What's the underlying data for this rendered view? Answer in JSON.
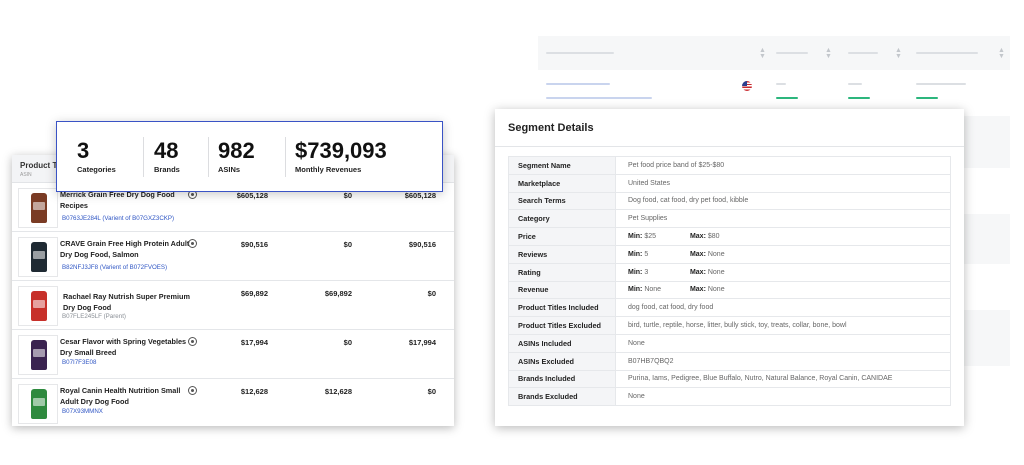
{
  "stats": {
    "categories": {
      "value": "3",
      "label": "Categories"
    },
    "brands": {
      "value": "48",
      "label": "Brands"
    },
    "asins": {
      "value": "982",
      "label": "ASINs"
    },
    "revenue": {
      "value": "$739,093",
      "label": "Monthly Revenues"
    }
  },
  "product_table": {
    "header_title": "Product Titl",
    "header_sub": "ASIN",
    "rows": [
      {
        "name": "Merrick Grain Free Dry Dog Food Recipes",
        "asin": "B0763JE284L (Varient of B07GXZ3CKP)",
        "asin_style": "blue",
        "col1": "$605,128",
        "col2": "$0",
        "col3": "$605,128",
        "bag_color": "#7a3b24"
      },
      {
        "name": "CRAVE Grain Free High Protein Adult Dry Dog Food, Salmon",
        "asin": "B82NFJ3JF8  (Varient of B072FVOES)",
        "asin_style": "blue",
        "col1": "$90,516",
        "col2": "$0",
        "col3": "$90,516",
        "bag_color": "#1f2a33"
      },
      {
        "name": "Rachael Ray Nutrish Super Premium Dry Dog Food",
        "asin": "B07FLE245LF (Parent)",
        "asin_style": "grey",
        "col1": "$69,892",
        "col2": "$69,892",
        "col3": "$0",
        "bag_color": "#c7302a"
      },
      {
        "name": "Cesar Flavor with Spring Vegetables Dry Small Breed",
        "asin": "B07I7F3E08",
        "asin_style": "blue",
        "col1": "$17,994",
        "col2": "$0",
        "col3": "$17,994",
        "bag_color": "#3a2350"
      },
      {
        "name": "Royal Canin Health Nutrition Small Adult Dry Dog Food",
        "asin": "B07X93MMNX",
        "asin_style": "blue",
        "col1": "$12,628",
        "col2": "$12,628",
        "col3": "$0",
        "bag_color": "#2e8a3e"
      }
    ]
  },
  "segment": {
    "title": "Segment Details",
    "rows": [
      {
        "key": "Segment Name",
        "value": "Pet food price band of $25-$80"
      },
      {
        "key": "Marketplace",
        "value": "United States"
      },
      {
        "key": "Search Terms",
        "value": "Dog food, cat food, dry pet food, kibble"
      },
      {
        "key": "Category",
        "value": "Pet Supplies"
      },
      {
        "key": "Price",
        "min_label": "Min:",
        "min": "$25",
        "max_label": "Max:",
        "max": "$80"
      },
      {
        "key": "Reviews",
        "min_label": "Min:",
        "min": "5",
        "max_label": "Max:",
        "max": "None"
      },
      {
        "key": "Rating",
        "min_label": "Min:",
        "min": "3",
        "max_label": "Max:",
        "max": "None"
      },
      {
        "key": "Revenue",
        "min_label": "Min:",
        "min": "None",
        "max_label": "Max:",
        "max": "None"
      },
      {
        "key": "Product Titles Included",
        "value": "dog food, cat food, dry food"
      },
      {
        "key": "Product Titles Excluded",
        "value": "bird, turtle, reptile, horse, litter, bully stick, toy, treats, collar, bone, bowl"
      },
      {
        "key": "ASINs Included",
        "value": "None"
      },
      {
        "key": "ASINs Excluded",
        "value": "B07HB7QBQ2"
      },
      {
        "key": "Brands Included",
        "value": "Purina, Iams, Pedigree, Blue Buffalo, Nutro, Natural Balance, Royal Canin, CANIDAE"
      },
      {
        "key": "Brands Excluded",
        "value": "None"
      }
    ]
  },
  "colors": {
    "accent_blue": "#3a53c5",
    "link_blue": "#2f56c4",
    "green_bar": "#2cb67d"
  },
  "icons": [
    "us-flag-icon",
    "info-icon",
    "sort-icon"
  ]
}
